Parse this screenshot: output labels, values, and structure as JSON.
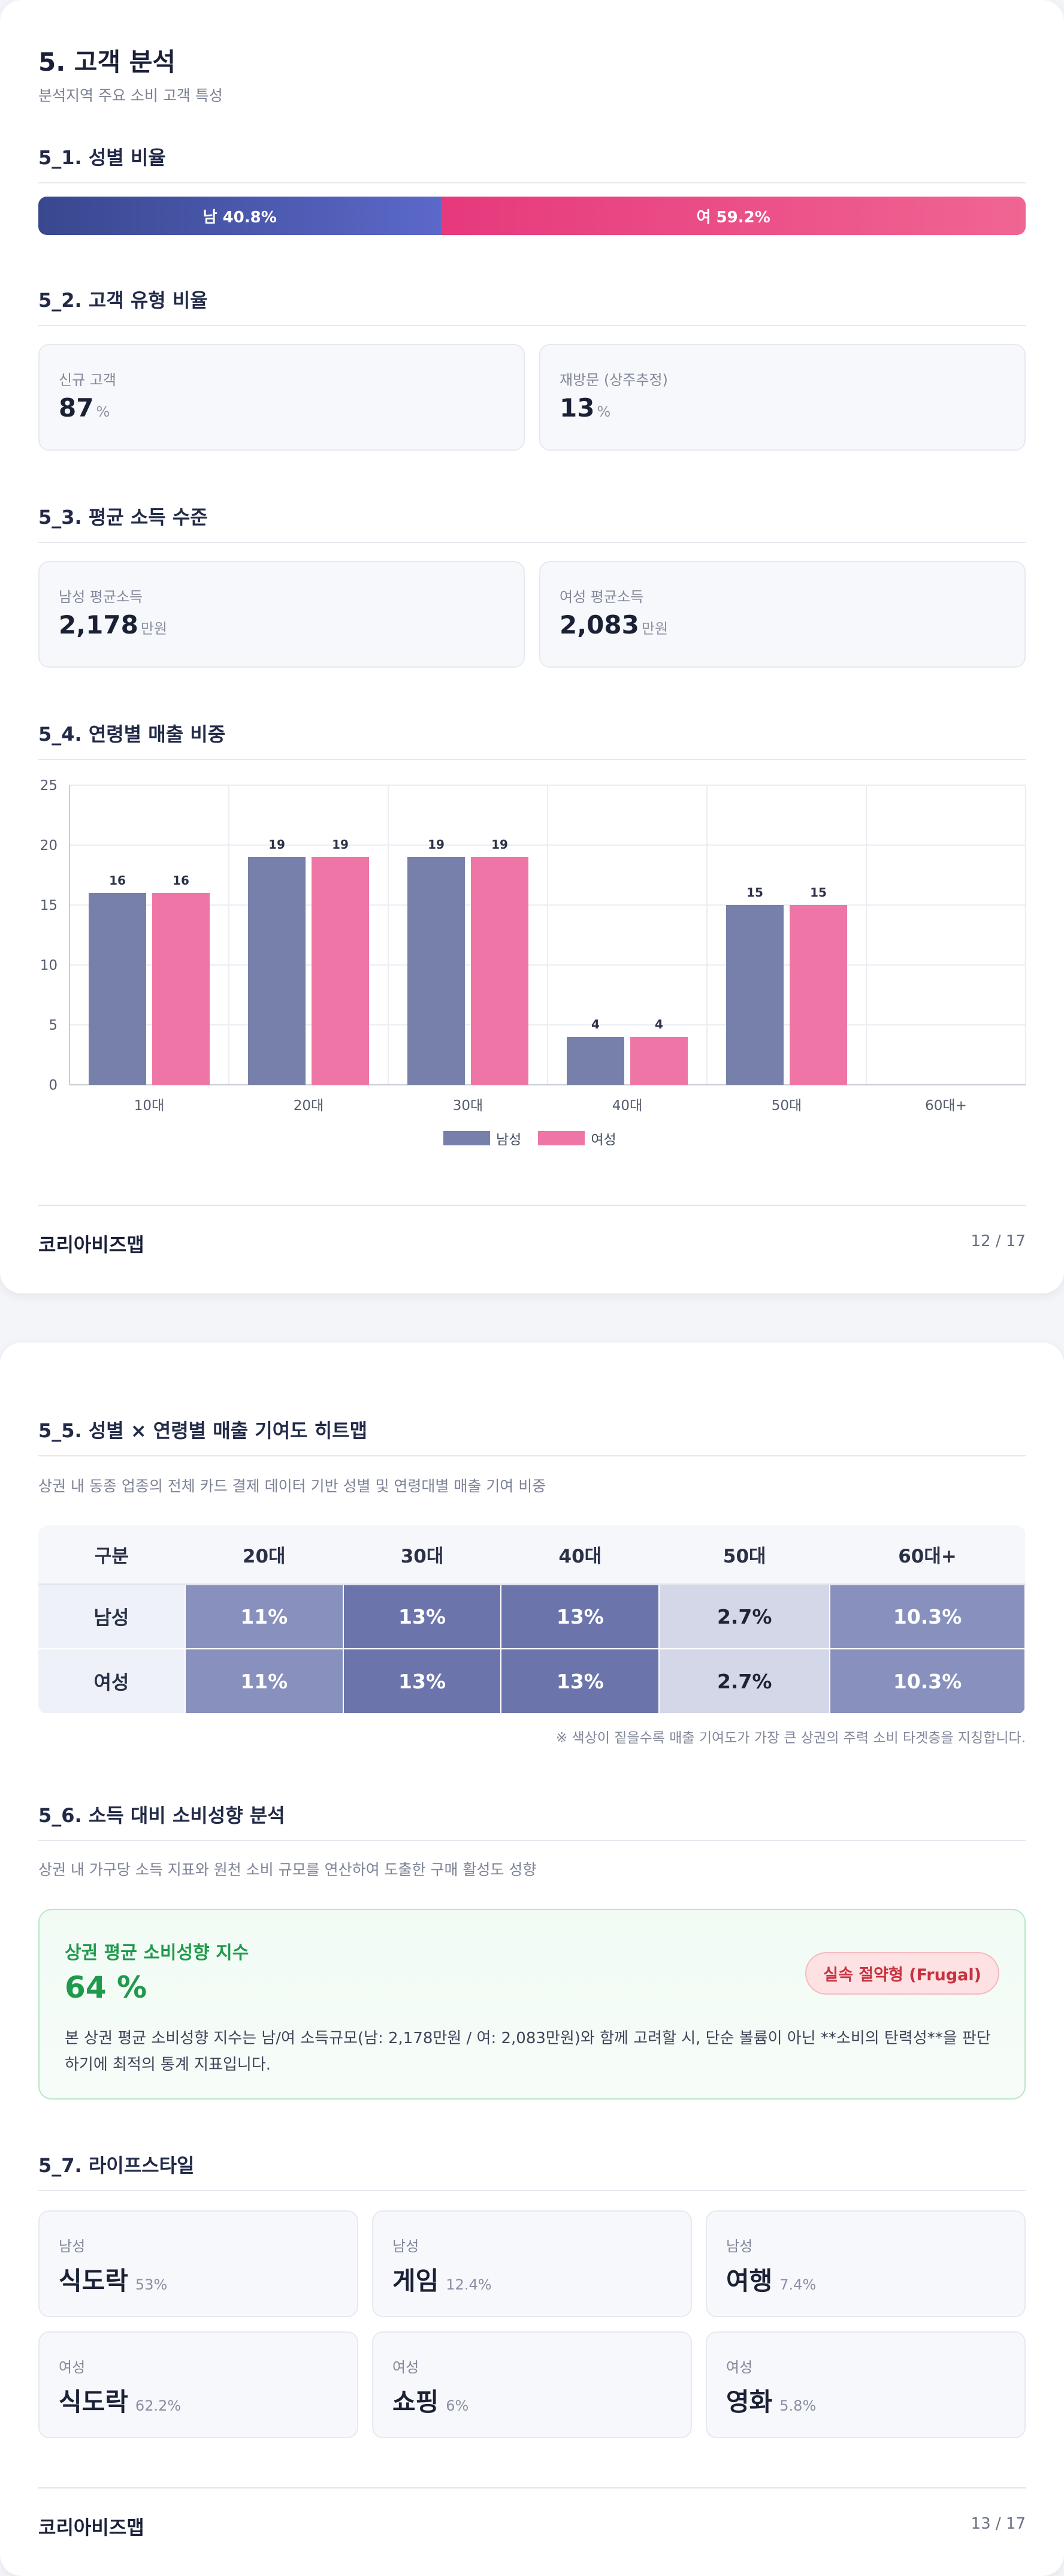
{
  "page1": {
    "title": "5. 고객 분석",
    "subtitle": "분석지역 주요 소비 고객 특성",
    "gender": {
      "heading": "5_1. 성별 비율",
      "male_label": "남 40.8%",
      "female_label": "여 59.2%",
      "male_pct": 40.8,
      "female_pct": 59.2,
      "male_color": "#4a58b0",
      "female_color": "#ea4d88"
    },
    "customer_type": {
      "heading": "5_2. 고객 유형 비율",
      "cards": [
        {
          "label": "신규 고객",
          "value": "87",
          "unit": "%"
        },
        {
          "label": "재방문 (상주추정)",
          "value": "13",
          "unit": "%"
        }
      ]
    },
    "income": {
      "heading": "5_3. 평균 소득 수준",
      "cards": [
        {
          "label": "남성 평균소득",
          "value": "2,178",
          "unit": "만원"
        },
        {
          "label": "여성 평균소득",
          "value": "2,083",
          "unit": "만원"
        }
      ]
    },
    "age_sales": {
      "heading": "5_4. 연령별 매출 비중"
    },
    "footer": {
      "brand": "코리아비즈맵",
      "page": "12 / 17"
    }
  },
  "chart_data": {
    "type": "bar",
    "categories": [
      "10대",
      "20대",
      "30대",
      "40대",
      "50대",
      "60대+"
    ],
    "series": [
      {
        "name": "남성",
        "values": [
          16,
          19,
          19,
          4,
          15,
          0
        ],
        "color": "#7780ab"
      },
      {
        "name": "여성",
        "values": [
          16,
          19,
          19,
          4,
          15,
          0
        ],
        "color": "#ee75a5"
      }
    ],
    "data_labels": [
      [
        "16",
        "19",
        "19",
        "4",
        "15",
        null
      ],
      [
        "16",
        "19",
        "19",
        "4",
        "15",
        null
      ]
    ],
    "ylim": [
      0,
      25
    ],
    "yticks": [
      "0",
      "5",
      "10",
      "15",
      "20",
      "25"
    ],
    "grid": true,
    "legend": "bottom-center"
  },
  "page2": {
    "heatmap": {
      "heading": "5_5. 성별 × 연령별 매출 기여도 히트맵",
      "desc": "상권 내 동종 업종의 전체 카드 결제 데이터 기반 성별 및 연령대별 매출 기여 비중",
      "columns": [
        "구분",
        "20대",
        "30대",
        "40대",
        "50대",
        "60대+"
      ],
      "rows": [
        {
          "label": "남성",
          "cells": [
            "11%",
            "13%",
            "13%",
            "2.7%",
            "10.3%"
          ]
        },
        {
          "label": "여성",
          "cells": [
            "11%",
            "13%",
            "13%",
            "2.7%",
            "10.3%"
          ]
        }
      ],
      "note": "※ 색상이 짙을수록 매출 기여도가 가장 큰 상권의 주력 소비 타겟층을 지칭합니다."
    },
    "spending": {
      "heading": "5_6. 소득 대비 소비성향 분석",
      "desc": "상권 내 가구당 소득 지표와 원천 소비 규모를 연산하여 도출한 구매 활성도 성향",
      "card_title": "상권 평균 소비성향 지수",
      "value": "64 %",
      "badge": "실속 절약형 (Frugal)",
      "text": "본 상권 평균 소비성향 지수는 남/여 소득규모(남: 2,178만원 / 여: 2,083만원)와 함께 고려할 시, 단순 볼륨이 아닌 **소비의 탄력성**을 판단하기에 최적의 통계 지표입니다."
    },
    "lifestyle": {
      "heading": "5_7. 라이프스타일",
      "items": [
        {
          "gender": "남성",
          "name": "식도락",
          "pct": "53%"
        },
        {
          "gender": "남성",
          "name": "게임",
          "pct": "12.4%"
        },
        {
          "gender": "남성",
          "name": "여행",
          "pct": "7.4%"
        },
        {
          "gender": "여성",
          "name": "식도락",
          "pct": "62.2%"
        },
        {
          "gender": "여성",
          "name": "쇼핑",
          "pct": "6%"
        },
        {
          "gender": "여성",
          "name": "영화",
          "pct": "5.8%"
        }
      ]
    },
    "footer": {
      "brand": "코리아비즈맵",
      "page": "13 / 17"
    }
  }
}
